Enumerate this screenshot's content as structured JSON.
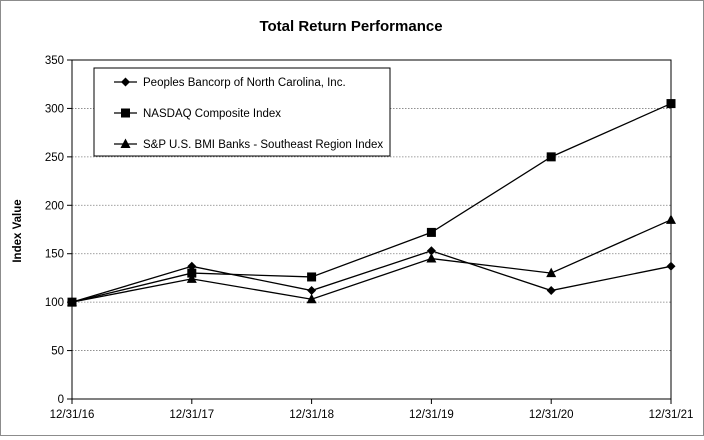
{
  "chart_data": {
    "type": "line",
    "title": "Total Return Performance",
    "xlabel": "",
    "ylabel": "Index Value",
    "categories": [
      "12/31/16",
      "12/31/17",
      "12/31/18",
      "12/31/19",
      "12/31/20",
      "12/31/21"
    ],
    "ylim": [
      0,
      350
    ],
    "yticks": [
      0,
      50,
      100,
      150,
      200,
      250,
      300,
      350
    ],
    "grid": true,
    "legend_position": "top-left",
    "series": [
      {
        "name": "Peoples Bancorp of North Carolina, Inc.",
        "marker": "diamond",
        "values": [
          100,
          137,
          112,
          153,
          112,
          137
        ]
      },
      {
        "name": "NASDAQ Composite Index",
        "marker": "square",
        "values": [
          100,
          130,
          126,
          172,
          250,
          305
        ]
      },
      {
        "name": "S&P U.S. BMI Banks - Southeast Region Index",
        "marker": "triangle",
        "values": [
          100,
          124,
          103,
          145,
          130,
          185
        ]
      }
    ],
    "colors": {
      "line": "#000000",
      "grid": "#808080",
      "background": "#ffffff"
    }
  }
}
